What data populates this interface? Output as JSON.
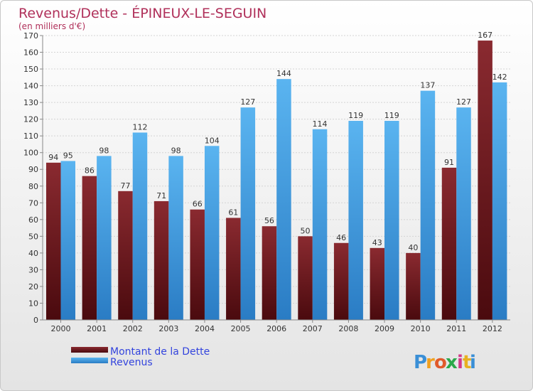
{
  "chart_data": {
    "type": "bar",
    "title": "Revenus/Dette - ÉPINEUX-LE-SEGUIN",
    "subtitle": "(en milliers d'€)",
    "categories": [
      "2000",
      "2001",
      "2002",
      "2003",
      "2004",
      "2005",
      "2006",
      "2007",
      "2008",
      "2009",
      "2010",
      "2011",
      "2012"
    ],
    "series": [
      {
        "name": "Montant de la Dette",
        "color": "#7a1e24",
        "values": [
          94,
          86,
          77,
          71,
          66,
          61,
          56,
          50,
          46,
          43,
          40,
          91,
          167
        ]
      },
      {
        "name": "Revenus",
        "color": "#4aa3e8",
        "values": [
          95,
          98,
          112,
          98,
          104,
          127,
          144,
          114,
          119,
          119,
          137,
          127,
          142
        ]
      }
    ],
    "ylim": [
      0,
      170
    ],
    "ytick_step": 10,
    "grid": true,
    "legend_position": "bottom-left"
  },
  "watermark": {
    "letters": [
      "P",
      "r",
      "o",
      "x",
      "i",
      "t",
      "i"
    ],
    "colors": [
      "#3a8fd6",
      "#f0a020",
      "#e05a2a",
      "#2aa84a",
      "#d23a8a",
      "#e8b020",
      "#3a8fd6"
    ]
  }
}
